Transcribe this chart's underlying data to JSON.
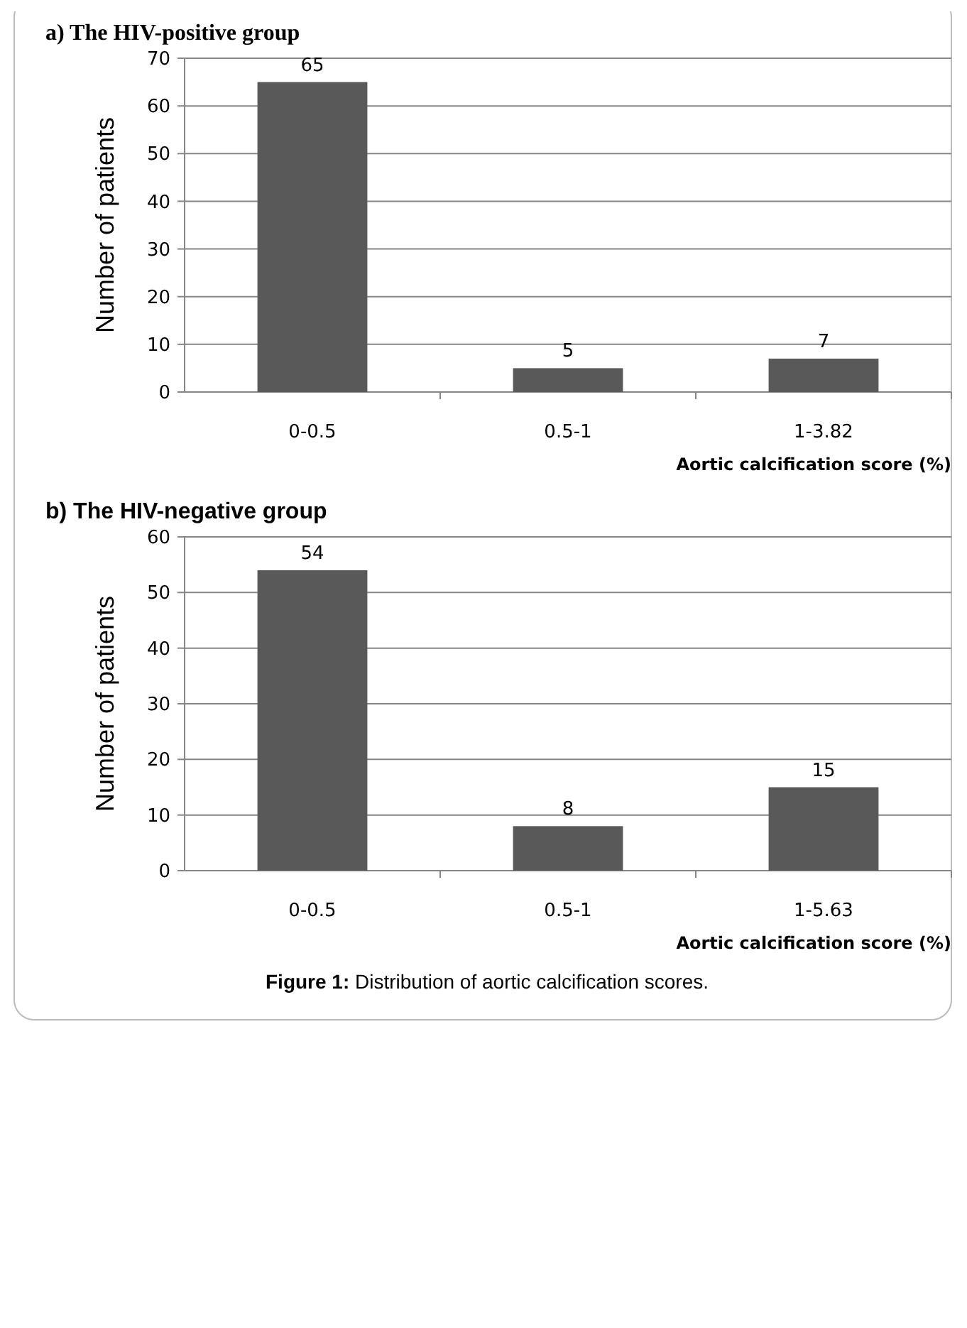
{
  "chart_data": [
    {
      "type": "bar",
      "title": "a)  The HIV-positive group",
      "xlabel": "Aortic calcification score (%)",
      "ylabel": "Number of patients",
      "categories": [
        "0-0.5",
        "0.5-1",
        "1-3.82"
      ],
      "values": [
        65,
        5,
        7
      ],
      "color": "#595959",
      "ylim": [
        0,
        70
      ],
      "yticks": [
        0,
        10,
        20,
        30,
        40,
        50,
        60,
        70
      ],
      "grid": "y",
      "data_labels": true
    },
    {
      "type": "bar",
      "title": "b) The HIV-negative group",
      "xlabel": "Aortic calcification score (%)",
      "ylabel": "Number of patients",
      "categories": [
        "0-0.5",
        "0.5-1",
        "1-5.63"
      ],
      "values": [
        54,
        8,
        15
      ],
      "color": "#595959",
      "ylim": [
        0,
        60
      ],
      "yticks": [
        0,
        10,
        20,
        30,
        40,
        50,
        60
      ],
      "grid": "y",
      "data_labels": true,
      "annotations": [
        "Figure 1: Distribution of aortic calcification scores."
      ]
    }
  ]
}
